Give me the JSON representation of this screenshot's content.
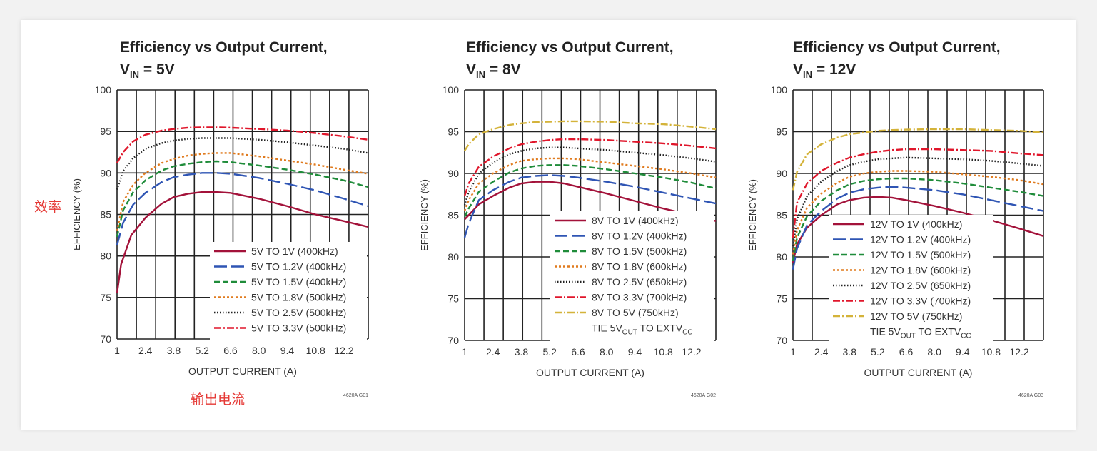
{
  "annotations": {
    "efficiency_cn": "效率",
    "output_current_cn": "输出电流"
  },
  "chart_data": [
    {
      "type": "line",
      "title_line1": "Efficiency vs Output Current,",
      "title_vin_prefix": "V",
      "title_vin_sub": "IN",
      "title_vin_value": " = 5V",
      "xlabel": "OUTPUT CURRENT (A)",
      "ylabel": "EFFICIENCY (%)",
      "xlim": [
        1,
        13.4
      ],
      "ylim": [
        70,
        100
      ],
      "xticks": [
        "1",
        "2.4",
        "3.8",
        "5.2",
        "6.6",
        "8.0",
        "9.4",
        "10.8",
        "12.2"
      ],
      "yticks": [
        "70",
        "75",
        "80",
        "85",
        "90",
        "95",
        "100"
      ],
      "code": "4620A G01",
      "legend": {
        "position": "lower-right"
      },
      "series": [
        {
          "name": "5V TO 1V (400kHz)",
          "color": "#a3123a",
          "style": "solid",
          "x": [
            1,
            1.2,
            1.7,
            2.4,
            3.2,
            3.8,
            4.5,
            5.2,
            5.9,
            6.6,
            8.0,
            9.4,
            10.8,
            12.2,
            13.4
          ],
          "y": [
            75.5,
            79,
            82.5,
            84.6,
            86.3,
            87.1,
            87.5,
            87.7,
            87.7,
            87.6,
            86.9,
            86,
            85,
            84.2,
            83.5
          ]
        },
        {
          "name": "5V TO 1.2V (400kHz)",
          "color": "#2f55b4",
          "style": "long-dash",
          "x": [
            1,
            1.3,
            1.8,
            2.4,
            3.2,
            3.8,
            4.5,
            5.2,
            5.9,
            6.6,
            8.0,
            9.4,
            10.8,
            12.2,
            13.4
          ],
          "y": [
            81.3,
            84,
            86.2,
            87.6,
            88.9,
            89.5,
            89.8,
            90,
            90,
            89.9,
            89.4,
            88.7,
            87.9,
            86.9,
            86
          ]
        },
        {
          "name": "5V TO 1.5V (400kHz)",
          "color": "#1f8c3a",
          "style": "dash",
          "x": [
            1,
            1.3,
            1.8,
            2.4,
            3.2,
            3.8,
            4.5,
            5.2,
            5.9,
            6.6,
            8.0,
            9.4,
            10.8,
            12.2,
            13.4
          ],
          "y": [
            82.3,
            85.5,
            87.7,
            89.1,
            90.3,
            90.8,
            91.1,
            91.3,
            91.4,
            91.3,
            90.9,
            90.4,
            89.8,
            89.1,
            88.3
          ]
        },
        {
          "name": "5V TO 1.8V (500kHz)",
          "color": "#e07b1f",
          "style": "dot",
          "x": [
            1,
            1.3,
            1.8,
            2.4,
            3.2,
            3.8,
            4.5,
            5.2,
            5.9,
            6.6,
            8.0,
            9.4,
            10.8,
            12.2,
            13.4
          ],
          "y": [
            83,
            86.5,
            88.6,
            90,
            91.2,
            91.7,
            92.1,
            92.3,
            92.4,
            92.4,
            92,
            91.5,
            91,
            90.4,
            89.9
          ]
        },
        {
          "name": "5V TO 2.5V (500kHz)",
          "color": "#222222",
          "style": "fine-dot",
          "x": [
            1,
            1.3,
            1.8,
            2.4,
            3.2,
            3.8,
            4.5,
            5.2,
            5.9,
            6.6,
            8.0,
            9.4,
            10.8,
            12.2,
            13.4
          ],
          "y": [
            88,
            90.2,
            91.8,
            92.9,
            93.6,
            93.9,
            94.1,
            94.2,
            94.2,
            94.2,
            94,
            93.7,
            93.3,
            92.9,
            92.4
          ]
        },
        {
          "name": "5V TO 3.3V (500kHz)",
          "color": "#e0162b",
          "style": "dash-dot",
          "x": [
            1,
            1.3,
            1.8,
            2.4,
            3.2,
            3.8,
            4.5,
            5.2,
            5.9,
            6.6,
            8.0,
            9.4,
            10.8,
            12.2,
            13.4
          ],
          "y": [
            91.2,
            92.5,
            93.8,
            94.6,
            95.1,
            95.3,
            95.45,
            95.5,
            95.5,
            95.45,
            95.3,
            95.1,
            94.8,
            94.4,
            94
          ]
        }
      ],
      "footnote": null
    },
    {
      "type": "line",
      "title_line1": "Efficiency vs Output Current,",
      "title_vin_prefix": "V",
      "title_vin_sub": "IN",
      "title_vin_value": " = 8V",
      "xlabel": "OUTPUT CURRENT (A)",
      "ylabel": "EFFICIENCY (%)",
      "xlim": [
        1,
        13.4
      ],
      "ylim": [
        70,
        100
      ],
      "xticks": [
        "1",
        "2.4",
        "3.8",
        "5.2",
        "6.6",
        "8.0",
        "9.4",
        "10.8",
        "12.2"
      ],
      "yticks": [
        "70",
        "75",
        "80",
        "85",
        "90",
        "95",
        "100"
      ],
      "code": "4620A G02",
      "legend": {
        "position": "lower-right"
      },
      "series": [
        {
          "name": "8V TO 1V (400kHz)",
          "color": "#a3123a",
          "style": "solid",
          "x": [
            1,
            1.2,
            1.7,
            2.4,
            3.2,
            3.8,
            4.5,
            5.2,
            5.9,
            6.6,
            8.0,
            9.4,
            10.8,
            12.2,
            13.4
          ],
          "y": [
            84.5,
            85,
            86.3,
            87.3,
            88.3,
            88.8,
            89,
            89,
            88.8,
            88.4,
            87.6,
            86.7,
            85.8,
            85,
            84.3
          ]
        },
        {
          "name": "8V TO 1.2V (400kHz)",
          "color": "#2f55b4",
          "style": "long-dash",
          "x": [
            1,
            1.2,
            1.7,
            2.4,
            3.2,
            3.8,
            4.5,
            5.2,
            5.9,
            6.6,
            8.0,
            9.4,
            10.8,
            12.2,
            13.4
          ],
          "y": [
            82.3,
            84,
            86.8,
            88,
            89,
            89.5,
            89.7,
            89.8,
            89.7,
            89.5,
            89,
            88.4,
            87.7,
            87,
            86.4
          ]
        },
        {
          "name": "8V TO 1.5V (500kHz)",
          "color": "#1f8c3a",
          "style": "dash",
          "x": [
            1,
            1.2,
            1.7,
            2.4,
            3.2,
            3.8,
            4.5,
            5.2,
            5.9,
            6.6,
            8.0,
            9.4,
            10.8,
            12.2,
            13.4
          ],
          "y": [
            84.8,
            85.8,
            87.8,
            89,
            90.1,
            90.6,
            90.9,
            91,
            91,
            90.9,
            90.5,
            90,
            89.5,
            88.9,
            88.2
          ]
        },
        {
          "name": "8V TO 1.8V (600kHz)",
          "color": "#e07b1f",
          "style": "dot",
          "x": [
            1,
            1.2,
            1.7,
            2.4,
            3.2,
            3.8,
            4.5,
            5.2,
            5.9,
            6.6,
            8.0,
            9.4,
            10.8,
            12.2,
            13.4
          ],
          "y": [
            85.5,
            86.8,
            88.8,
            90,
            91,
            91.5,
            91.7,
            91.8,
            91.8,
            91.7,
            91.3,
            90.9,
            90.5,
            90,
            89.5
          ]
        },
        {
          "name": "8V TO 2.5V (650kHz)",
          "color": "#222222",
          "style": "fine-dot",
          "x": [
            1,
            1.2,
            1.7,
            2.4,
            3.2,
            3.8,
            4.5,
            5.2,
            5.9,
            6.6,
            8.0,
            9.4,
            10.8,
            12.2,
            13.4
          ],
          "y": [
            86.2,
            87.8,
            90,
            91.3,
            92.3,
            92.7,
            93,
            93.1,
            93.1,
            93,
            92.8,
            92.5,
            92.2,
            91.8,
            91.4
          ]
        },
        {
          "name": "8V TO 3.3V (700kHz)",
          "color": "#e0162b",
          "style": "dash-dot",
          "x": [
            1,
            1.2,
            1.7,
            2.4,
            3.2,
            3.8,
            4.5,
            5.2,
            5.9,
            6.6,
            8.0,
            9.4,
            10.8,
            12.2,
            13.4
          ],
          "y": [
            87.3,
            88.8,
            90.8,
            92,
            93,
            93.5,
            93.8,
            94,
            94.1,
            94.1,
            94,
            93.8,
            93.6,
            93.3,
            93
          ]
        },
        {
          "name": "8V TO 5V (750kHz)",
          "color": "#d4b33a",
          "style": "dash-dot",
          "x": [
            1,
            1.2,
            1.7,
            2.4,
            3.2,
            3.8,
            4.5,
            5.2,
            5.9,
            6.6,
            8.0,
            9.4,
            10.8,
            12.2,
            13.4
          ],
          "y": [
            92.7,
            93.5,
            94.7,
            95.3,
            95.8,
            96,
            96.15,
            96.2,
            96.25,
            96.25,
            96.2,
            96,
            95.9,
            95.6,
            95.3
          ]
        }
      ],
      "footnote": {
        "prefix": "TIE 5V",
        "sub": "OUT",
        "middle": " TO EXTV",
        "sub2": "CC"
      }
    },
    {
      "type": "line",
      "title_line1": "Efficiency vs Output Current,",
      "title_vin_prefix": "V",
      "title_vin_sub": "IN",
      "title_vin_value": " = 12V",
      "xlabel": "OUTPUT CURRENT (A)",
      "ylabel": "EFFICIENCY (%)",
      "xlim": [
        1,
        13.4
      ],
      "ylim": [
        70,
        100
      ],
      "xticks": [
        "1",
        "2.4",
        "3.8",
        "5.2",
        "6.6",
        "8.0",
        "9.4",
        "10.8",
        "12.2"
      ],
      "yticks": [
        "70",
        "75",
        "80",
        "85",
        "90",
        "95",
        "100"
      ],
      "code": "4620A G03",
      "legend": {
        "position": "lower-right"
      },
      "series": [
        {
          "name": "12V TO 1V (400kHz)",
          "color": "#a3123a",
          "style": "solid",
          "x": [
            1,
            1.2,
            1.7,
            2.4,
            3.2,
            3.8,
            4.5,
            5.2,
            5.9,
            6.6,
            8.0,
            9.4,
            10.8,
            12.2,
            13.4
          ],
          "y": [
            79.3,
            81.5,
            83.5,
            85,
            86.3,
            86.8,
            87.1,
            87.2,
            87.1,
            86.8,
            86.1,
            85.3,
            84.4,
            83.4,
            82.5
          ]
        },
        {
          "name": "12V TO 1.2V (400kHz)",
          "color": "#2f55b4",
          "style": "long-dash",
          "x": [
            1,
            1.2,
            1.7,
            2.4,
            3.2,
            3.8,
            4.5,
            5.2,
            5.9,
            6.6,
            8.0,
            9.4,
            10.8,
            12.2,
            13.4
          ],
          "y": [
            78.5,
            81,
            83.8,
            85.5,
            87,
            87.7,
            88.1,
            88.3,
            88.4,
            88.3,
            88,
            87.5,
            86.8,
            86.1,
            85.5
          ]
        },
        {
          "name": "12V TO 1.5V (500kHz)",
          "color": "#1f8c3a",
          "style": "dash",
          "x": [
            1,
            1.2,
            1.7,
            2.4,
            3.2,
            3.8,
            4.5,
            5.2,
            5.9,
            6.6,
            8.0,
            9.4,
            10.8,
            12.2,
            13.4
          ],
          "y": [
            79.5,
            82.3,
            84.9,
            86.7,
            88,
            88.7,
            89.1,
            89.3,
            89.4,
            89.4,
            89.2,
            88.8,
            88.3,
            87.8,
            87.3
          ]
        },
        {
          "name": "12V TO 1.8V (600kHz)",
          "color": "#e07b1f",
          "style": "dot",
          "x": [
            1,
            1.2,
            1.7,
            2.4,
            3.2,
            3.8,
            4.5,
            5.2,
            5.9,
            6.6,
            8.0,
            9.4,
            10.8,
            12.2,
            13.4
          ],
          "y": [
            80.3,
            83.2,
            85.9,
            87.6,
            88.9,
            89.6,
            90,
            90.2,
            90.3,
            90.3,
            90.2,
            89.9,
            89.6,
            89.2,
            88.7
          ]
        },
        {
          "name": "12V TO 2.5V (650kHz)",
          "color": "#222222",
          "style": "fine-dot",
          "x": [
            1,
            1.2,
            1.7,
            2.4,
            3.2,
            3.8,
            4.5,
            5.2,
            5.9,
            6.6,
            8.0,
            9.4,
            10.8,
            12.2,
            13.4
          ],
          "y": [
            81.3,
            84.5,
            87.3,
            89,
            90.3,
            91,
            91.4,
            91.7,
            91.8,
            91.9,
            91.8,
            91.7,
            91.5,
            91.2,
            90.9
          ]
        },
        {
          "name": "12V TO 3.3V (700kHz)",
          "color": "#e0162b",
          "style": "dash-dot",
          "x": [
            1,
            1.2,
            1.7,
            2.4,
            3.2,
            3.8,
            4.5,
            5.2,
            5.9,
            6.6,
            8.0,
            9.4,
            10.8,
            12.2,
            13.4
          ],
          "y": [
            82.3,
            86.5,
            88.8,
            90.3,
            91.3,
            91.9,
            92.3,
            92.6,
            92.8,
            92.9,
            92.9,
            92.8,
            92.7,
            92.4,
            92.2
          ]
        },
        {
          "name": "12V TO 5V (750kHz)",
          "color": "#d4b33a",
          "style": "dash-dot",
          "x": [
            1,
            1.2,
            1.7,
            2.4,
            3.2,
            3.8,
            4.5,
            5.2,
            5.9,
            6.6,
            8.0,
            9.4,
            10.8,
            12.2,
            13.4
          ],
          "y": [
            88,
            90.2,
            92.3,
            93.5,
            94.3,
            94.7,
            94.9,
            95.1,
            95.2,
            95.25,
            95.3,
            95.3,
            95.2,
            95.1,
            94.9
          ]
        }
      ],
      "footnote": {
        "prefix": "TIE 5V",
        "sub": "OUT",
        "middle": " TO EXTV",
        "sub2": "CC"
      }
    }
  ]
}
